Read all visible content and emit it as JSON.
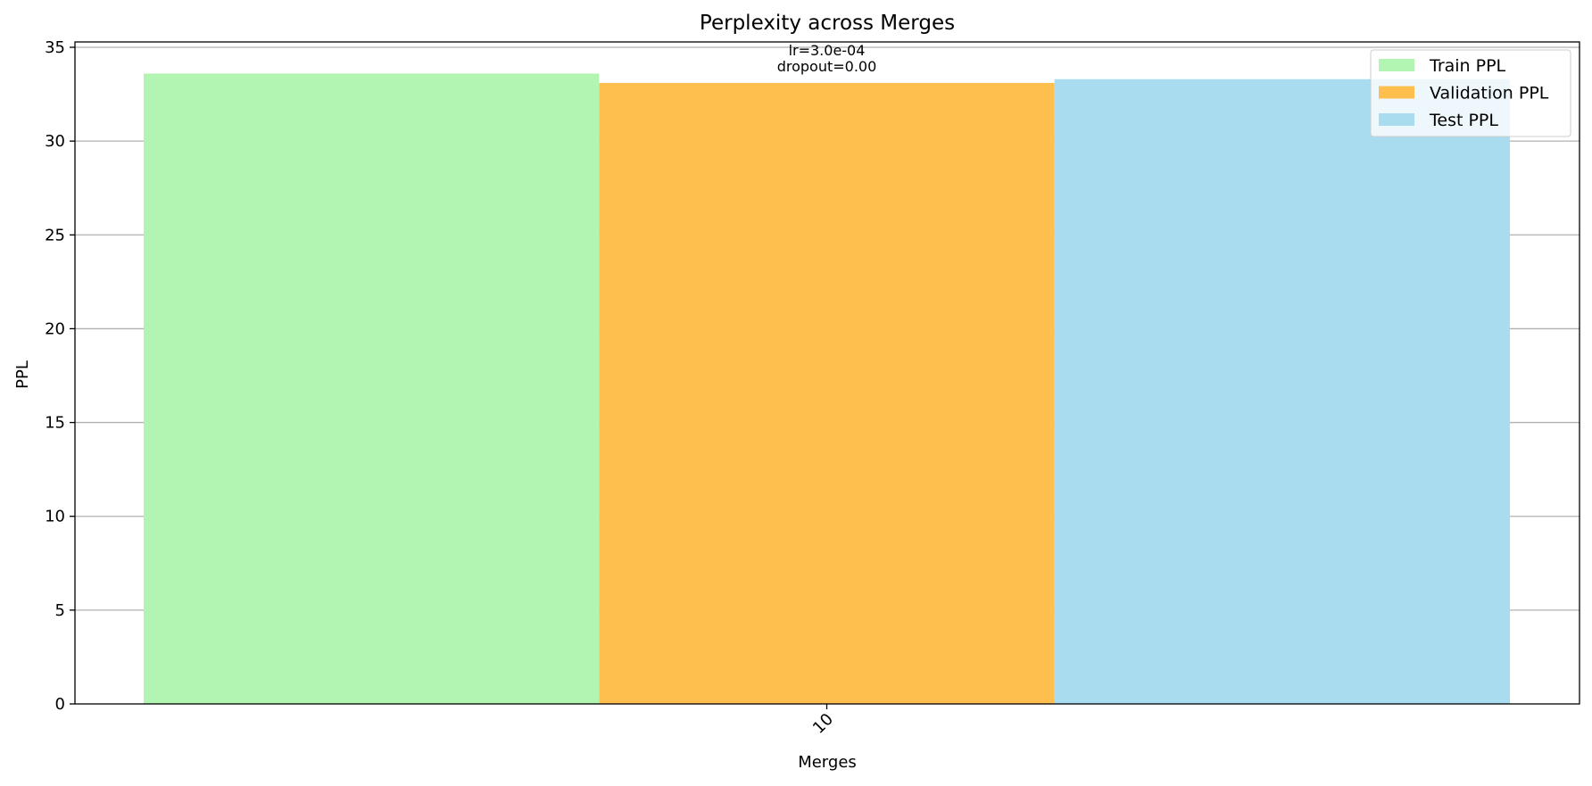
{
  "chart_data": {
    "type": "bar",
    "title": "Perplexity across Merges",
    "xlabel": "Merges",
    "ylabel": "PPL",
    "categories": [
      "10"
    ],
    "series": [
      {
        "name": "Train PPL",
        "values": [
          33.6
        ],
        "color": "#b2f5b2"
      },
      {
        "name": "Validation PPL",
        "values": [
          33.1
        ],
        "color": "#ffbf4f"
      },
      {
        "name": "Test PPL",
        "values": [
          33.3
        ],
        "color": "#aadcf0"
      }
    ],
    "ylim": [
      0,
      35
    ],
    "yticks": [
      0,
      5,
      10,
      15,
      20,
      25,
      30,
      35
    ],
    "annotations": [
      {
        "category": "10",
        "lines": [
          "lr=3.0e-04",
          "dropout=0.00"
        ]
      }
    ],
    "grid": "y",
    "legend": "top-right"
  }
}
